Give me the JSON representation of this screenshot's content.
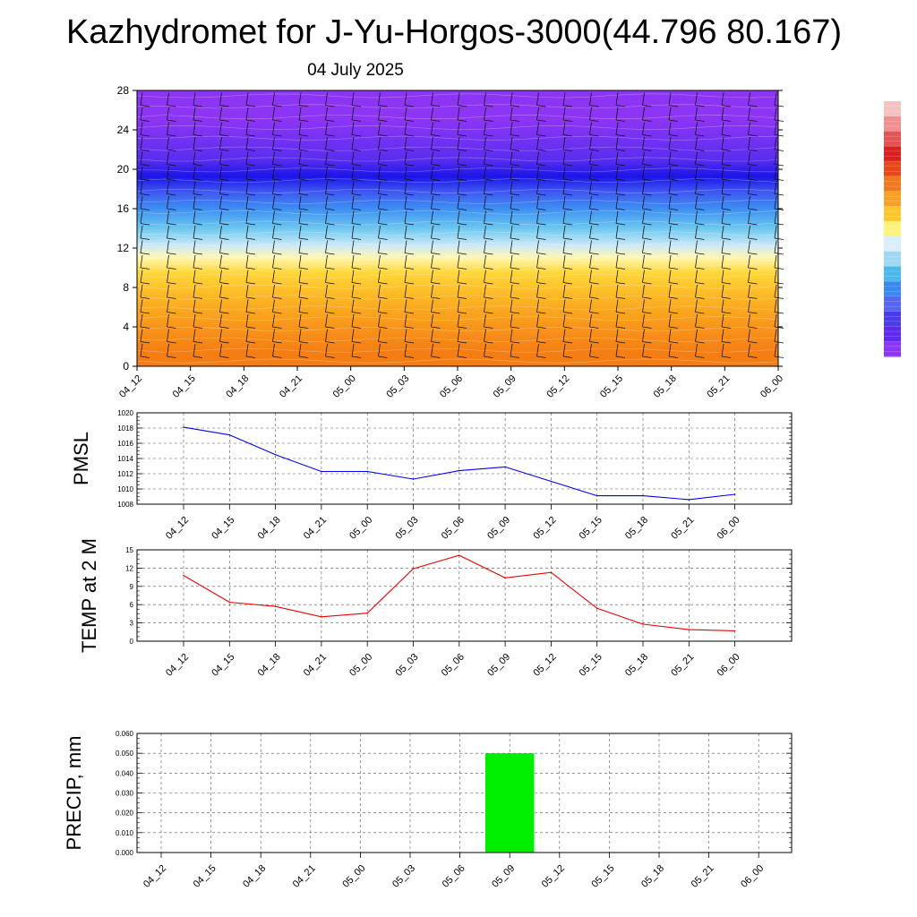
{
  "title": "Kazhydromet for J-Yu-Horgos-3000(44.796 80.167)",
  "date": "04 July 2025",
  "x_labels": [
    "04_12",
    "04_15",
    "04_18",
    "04_21",
    "05_00",
    "05_03",
    "05_06",
    "05_09",
    "05_12",
    "05_15",
    "05_18",
    "05_21",
    "06_00"
  ],
  "chart_data": [
    {
      "type": "heatmap",
      "title": "",
      "xlabel": "",
      "ylabel": "",
      "categories": [
        "04_12",
        "04_15",
        "04_18",
        "04_21",
        "05_00",
        "05_03",
        "05_06",
        "05_09",
        "05_12",
        "05_15",
        "05_18",
        "05_21",
        "06_00"
      ],
      "yticks": [
        0,
        4,
        8,
        12,
        16,
        20,
        24,
        28
      ],
      "ylim": [
        0,
        28
      ],
      "color_bands": [
        {
          "y_from": 0,
          "y_to": 3,
          "color": "#f57e14"
        },
        {
          "y_from": 3,
          "y_to": 6,
          "color": "#f99a1c"
        },
        {
          "y_from": 6,
          "y_to": 8.5,
          "color": "#fcb926"
        },
        {
          "y_from": 8.5,
          "y_to": 10.5,
          "color": "#ffd73a"
        },
        {
          "y_from": 10.5,
          "y_to": 11.5,
          "color": "#fff7b0"
        },
        {
          "y_from": 11.5,
          "y_to": 13,
          "color": "#cde9f7"
        },
        {
          "y_from": 13,
          "y_to": 15,
          "color": "#6cc7ef"
        },
        {
          "y_from": 15,
          "y_to": 17,
          "color": "#3d8ff2"
        },
        {
          "y_from": 17,
          "y_to": 18.5,
          "color": "#3f56f2"
        },
        {
          "y_from": 18.5,
          "y_to": 20,
          "color": "#1b15e8"
        },
        {
          "y_from": 20,
          "y_to": 22,
          "color": "#5a2ef0"
        },
        {
          "y_from": 22,
          "y_to": 28,
          "color": "#8d35f4"
        }
      ],
      "wind_barbs": true,
      "colorbar": [
        "#f4c1c1",
        "#ee9090",
        "#e45454",
        "#dc1f1f",
        "#e8471a",
        "#f0781e",
        "#f7a024",
        "#fcc62c",
        "#fff27a",
        "#d9eefa",
        "#9fd8f3",
        "#4cb8ec",
        "#3a89ef",
        "#5566f0",
        "#4a3cea",
        "#5d2bf0",
        "#8d35f4"
      ]
    },
    {
      "type": "line",
      "title": "",
      "xlabel": "",
      "ylabel": "PMSL",
      "categories": [
        "04_12",
        "04_15",
        "04_18",
        "04_21",
        "05_00",
        "05_03",
        "05_06",
        "05_09",
        "05_12",
        "05_15",
        "05_18",
        "05_21",
        "06_00"
      ],
      "values": [
        1018.1,
        1017.1,
        1014.5,
        1012.3,
        1012.3,
        1011.3,
        1012.4,
        1012.9,
        1011.0,
        1009.1,
        1009.1,
        1008.6,
        1009.3
      ],
      "ylim": [
        1008,
        1020
      ],
      "yticks": [
        "1008",
        "1010",
        "1012",
        "1014",
        "1016",
        "1018",
        "1020"
      ],
      "color": "#0000ee",
      "grid": true
    },
    {
      "type": "line",
      "title": "",
      "xlabel": "",
      "ylabel": "TEMP at 2 M",
      "categories": [
        "04_12",
        "04_15",
        "04_18",
        "04_21",
        "05_00",
        "05_03",
        "05_06",
        "05_09",
        "05_12",
        "05_15",
        "05_18",
        "05_21",
        "06_00"
      ],
      "values": [
        10.8,
        6.4,
        5.7,
        4.0,
        4.6,
        11.9,
        14.1,
        10.4,
        11.3,
        5.4,
        2.8,
        1.9,
        1.7
      ],
      "ylim": [
        0,
        15
      ],
      "yticks": [
        "0",
        "3",
        "6",
        "9",
        "12",
        "15"
      ],
      "color": "#ee0000",
      "grid": true
    },
    {
      "type": "bar",
      "title": "",
      "xlabel": "",
      "ylabel": "PRECIP, mm",
      "categories": [
        "04_12",
        "04_15",
        "04_18",
        "04_21",
        "05_00",
        "05_03",
        "05_06",
        "05_09",
        "05_12",
        "05_15",
        "05_18",
        "05_21",
        "06_00"
      ],
      "values": [
        0,
        0,
        0,
        0,
        0,
        0,
        0,
        0.05,
        0,
        0,
        0,
        0,
        0
      ],
      "ylim": [
        0,
        0.06
      ],
      "yticks": [
        "0.000",
        "0.010",
        "0.020",
        "0.030",
        "0.040",
        "0.050",
        "0.060"
      ],
      "color": "#00ee00",
      "grid": true
    }
  ]
}
